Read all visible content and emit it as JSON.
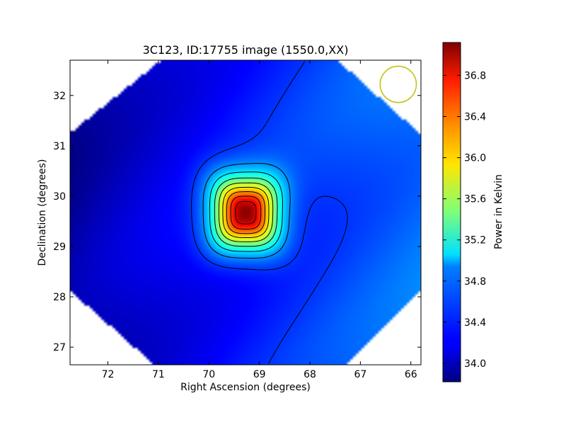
{
  "chart_data": {
    "type": "heatmap",
    "title": "3C123, ID:17755 image (1550.0,XX)",
    "xlabel": "Right Ascension (degrees)",
    "ylabel": "Declination (degrees)",
    "xlim": [
      72.75,
      65.8
    ],
    "ylim": [
      26.65,
      32.7
    ],
    "x_ticks": [
      72,
      71,
      70,
      69,
      68,
      67,
      66
    ],
    "y_ticks": [
      27,
      28,
      29,
      30,
      31,
      32
    ],
    "x_tick_labels": [
      "72",
      "71",
      "70",
      "69",
      "68",
      "67",
      "66"
    ],
    "y_tick_labels": [
      "27",
      "28",
      "29",
      "30",
      "31",
      "32"
    ],
    "colormap": "jet",
    "color_range": [
      33.82,
      37.12
    ],
    "colorbar": {
      "label": "Power in Kelvin",
      "ticks": [
        34.0,
        34.4,
        34.8,
        35.2,
        35.6,
        36.0,
        36.4,
        36.8
      ],
      "tick_labels": [
        "34.0",
        "34.4",
        "34.8",
        "35.2",
        "35.6",
        "36.0",
        "36.4",
        "36.8"
      ]
    },
    "source": {
      "ra": 69.27,
      "dec": 29.67,
      "peak": 37.1,
      "name": "3C123"
    },
    "background": {
      "value_west": 33.9,
      "value_east": 34.6
    },
    "contour_levels": [
      34.4,
      34.7,
      35.0,
      35.3,
      35.6,
      35.9,
      36.2,
      36.5,
      36.8
    ],
    "beam": {
      "ra": 66.25,
      "dec": 32.22,
      "radius_deg": 0.36,
      "color": "#bfbf00"
    },
    "grid": false,
    "colors": {
      "contour": "#000000",
      "beam": "#bfbf00"
    }
  }
}
